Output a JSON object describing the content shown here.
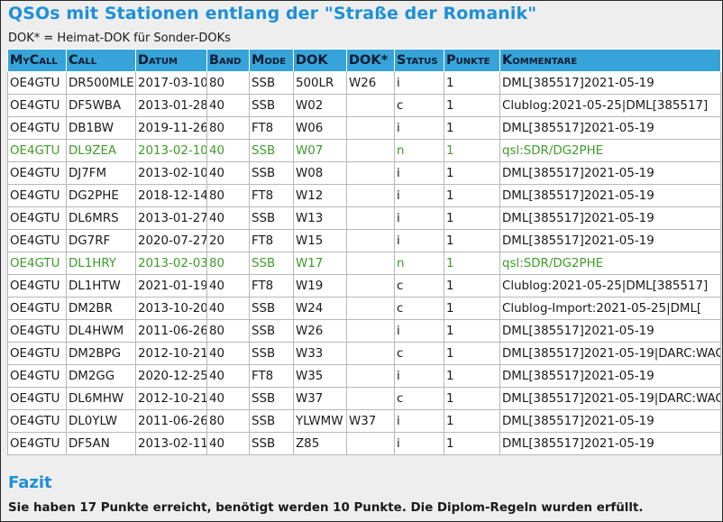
{
  "page": {
    "title": "QSOs mit Stationen entlang der \"Straße der Romanik\"",
    "note": "DOK* = Heimat-DOK für Sonder-DOKs"
  },
  "table": {
    "headers": [
      "MyCall",
      "Call",
      "Datum",
      "Band",
      "Mode",
      "DOK",
      "DOK*",
      "Status",
      "Punkte",
      "Kommentare"
    ],
    "rows": [
      {
        "mycall": "OE4GTU",
        "call": "DR500MLE",
        "datum": "2017-03-10",
        "band": "80",
        "mode": "SSB",
        "dok": "500LR",
        "dok2": "W26",
        "status": "i",
        "punkte": "1",
        "kommentar": "DML[385517]2021-05-19",
        "highlight": false
      },
      {
        "mycall": "OE4GTU",
        "call": "DF5WBA",
        "datum": "2013-01-28",
        "band": "40",
        "mode": "SSB",
        "dok": "W02",
        "dok2": "",
        "status": "c",
        "punkte": "1",
        "kommentar": "Clublog:2021-05-25|DML[385517]",
        "highlight": false
      },
      {
        "mycall": "OE4GTU",
        "call": "DB1BW",
        "datum": "2019-11-26",
        "band": "80",
        "mode": "FT8",
        "dok": "W06",
        "dok2": "",
        "status": "i",
        "punkte": "1",
        "kommentar": "DML[385517]2021-05-19",
        "highlight": false
      },
      {
        "mycall": "OE4GTU",
        "call": "DL9ZEA",
        "datum": "2013-02-10",
        "band": "40",
        "mode": "SSB",
        "dok": "W07",
        "dok2": "",
        "status": "n",
        "punkte": "1",
        "kommentar": "qsl:SDR/DG2PHE",
        "highlight": true
      },
      {
        "mycall": "OE4GTU",
        "call": "DJ7FM",
        "datum": "2013-02-10",
        "band": "40",
        "mode": "SSB",
        "dok": "W08",
        "dok2": "",
        "status": "i",
        "punkte": "1",
        "kommentar": "DML[385517]2021-05-19",
        "highlight": false
      },
      {
        "mycall": "OE4GTU",
        "call": "DG2PHE",
        "datum": "2018-12-14",
        "band": "80",
        "mode": "FT8",
        "dok": "W12",
        "dok2": "",
        "status": "i",
        "punkte": "1",
        "kommentar": "DML[385517]2021-05-19",
        "highlight": false
      },
      {
        "mycall": "OE4GTU",
        "call": "DL6MRS",
        "datum": "2013-01-27",
        "band": "40",
        "mode": "SSB",
        "dok": "W13",
        "dok2": "",
        "status": "i",
        "punkte": "1",
        "kommentar": "DML[385517]2021-05-19",
        "highlight": false
      },
      {
        "mycall": "OE4GTU",
        "call": "DG7RF",
        "datum": "2020-07-27",
        "band": "20",
        "mode": "FT8",
        "dok": "W15",
        "dok2": "",
        "status": "i",
        "punkte": "1",
        "kommentar": "DML[385517]2021-05-19",
        "highlight": false
      },
      {
        "mycall": "OE4GTU",
        "call": "DL1HRY",
        "datum": "2013-02-03",
        "band": "80",
        "mode": "SSB",
        "dok": "W17",
        "dok2": "",
        "status": "n",
        "punkte": "1",
        "kommentar": "qsl:SDR/DG2PHE",
        "highlight": true
      },
      {
        "mycall": "OE4GTU",
        "call": "DL1HTW",
        "datum": "2021-01-19",
        "band": "40",
        "mode": "FT8",
        "dok": "W19",
        "dok2": "",
        "status": "c",
        "punkte": "1",
        "kommentar": "Clublog:2021-05-25|DML[385517]",
        "highlight": false
      },
      {
        "mycall": "OE4GTU",
        "call": "DM2BR",
        "datum": "2013-10-20",
        "band": "40",
        "mode": "SSB",
        "dok": "W24",
        "dok2": "",
        "status": "c",
        "punkte": "1",
        "kommentar": "Clublog-Import:2021-05-25|DML[",
        "highlight": false
      },
      {
        "mycall": "OE4GTU",
        "call": "DL4HWM",
        "datum": "2011-06-26",
        "band": "80",
        "mode": "SSB",
        "dok": "W26",
        "dok2": "",
        "status": "i",
        "punkte": "1",
        "kommentar": "DML[385517]2021-05-19",
        "highlight": false
      },
      {
        "mycall": "OE4GTU",
        "call": "DM2BPG",
        "datum": "2012-10-21",
        "band": "40",
        "mode": "SSB",
        "dok": "W33",
        "dok2": "",
        "status": "c",
        "punkte": "1",
        "kommentar": "DML[385517]2021-05-19|DARC:WAG",
        "highlight": false
      },
      {
        "mycall": "OE4GTU",
        "call": "DM2GG",
        "datum": "2020-12-25",
        "band": "40",
        "mode": "FT8",
        "dok": "W35",
        "dok2": "",
        "status": "i",
        "punkte": "1",
        "kommentar": "DML[385517]2021-05-19",
        "highlight": false
      },
      {
        "mycall": "OE4GTU",
        "call": "DL6MHW",
        "datum": "2012-10-21",
        "band": "40",
        "mode": "SSB",
        "dok": "W37",
        "dok2": "",
        "status": "c",
        "punkte": "1",
        "kommentar": "DML[385517]2021-05-19|DARC:WAG",
        "highlight": false
      },
      {
        "mycall": "OE4GTU",
        "call": "DL0YLW",
        "datum": "2011-06-26",
        "band": "80",
        "mode": "SSB",
        "dok": "YLWMW",
        "dok2": "W37",
        "status": "i",
        "punkte": "1",
        "kommentar": "DML[385517]2021-05-19",
        "highlight": false
      },
      {
        "mycall": "OE4GTU",
        "call": "DF5AN",
        "datum": "2013-02-11",
        "band": "40",
        "mode": "SSB",
        "dok": "Z85",
        "dok2": "",
        "status": "i",
        "punkte": "1",
        "kommentar": "DML[385517]2021-05-19",
        "highlight": false
      }
    ]
  },
  "fazit": {
    "heading": "Fazit",
    "summary": "Sie haben 17 Punkte erreicht, benötigt werden 10 Punkte. Die Diplom-Regeln wurden erfüllt."
  },
  "colors": {
    "title": "#1e90d6",
    "header_bg": "#36a4d8",
    "highlight_text": "#3d9d28"
  }
}
